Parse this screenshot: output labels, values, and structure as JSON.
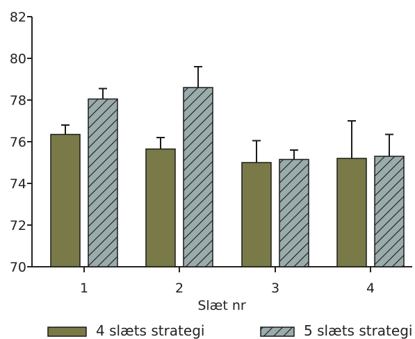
{
  "chart_data": {
    "type": "bar",
    "xlabel": "Slæt nr",
    "ylabel": "",
    "ylim": [
      70,
      82
    ],
    "yticks": [
      70,
      72,
      74,
      76,
      78,
      80,
      82
    ],
    "categories": [
      "1",
      "2",
      "3",
      "4"
    ],
    "series": [
      {
        "name": "4 slæts strategi",
        "values": [
          76.35,
          75.65,
          75.0,
          75.2
        ],
        "errors": [
          0.45,
          0.55,
          1.05,
          1.8
        ],
        "color": "#7a7a48",
        "pattern": "solid"
      },
      {
        "name": "5 slæts strategi",
        "values": [
          78.05,
          78.6,
          75.15,
          75.3
        ],
        "errors": [
          0.5,
          1.0,
          0.45,
          1.05
        ],
        "color": "#9aabab",
        "pattern": "hatch"
      }
    ],
    "grid": false,
    "legend_position": "bottom"
  }
}
